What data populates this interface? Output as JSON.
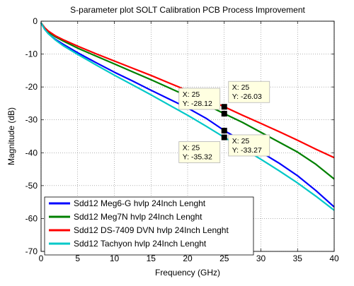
{
  "chart_data": {
    "type": "line",
    "title": "S-parameter plot SOLT Calibration PCB Process Improvement",
    "xlabel": "Frequency (GHz)",
    "ylabel": "Magnitude (dB)",
    "xlim": [
      0,
      40
    ],
    "ylim": [
      -70,
      0
    ],
    "xticks": [
      0,
      5,
      10,
      15,
      20,
      25,
      30,
      35,
      40
    ],
    "yticks": [
      0,
      -10,
      -20,
      -30,
      -40,
      -50,
      -60,
      -70
    ],
    "grid": true,
    "legend_position": "bottom-left",
    "series": [
      {
        "name": "Sdd12 Meg6-G hvlp 24Inch Lenght",
        "color": "#0000ff",
        "x": [
          0,
          0.5,
          1,
          2,
          3,
          5,
          7.5,
          10,
          12.5,
          15,
          17.5,
          20,
          22.5,
          25,
          27.5,
          30,
          32.5,
          35,
          37.5,
          40
        ],
        "y": [
          -0.5,
          -2.5,
          -3.8,
          -5.6,
          -7.0,
          -9.6,
          -12.6,
          -15.5,
          -18.2,
          -21.0,
          -23.7,
          -26.4,
          -29.5,
          -33.27,
          -36.5,
          -39.8,
          -43.2,
          -47.0,
          -51.5,
          -56.5
        ]
      },
      {
        "name": "Sdd12 Meg7N hvlp 24Inch Lenght",
        "color": "#008000",
        "x": [
          0,
          0.5,
          1,
          2,
          3,
          5,
          7.5,
          10,
          12.5,
          15,
          17.5,
          20,
          22.5,
          25,
          27.5,
          30,
          32.5,
          35,
          37.5,
          40
        ],
        "y": [
          -0.5,
          -2.2,
          -3.3,
          -4.8,
          -6.0,
          -8.2,
          -10.6,
          -13.0,
          -15.4,
          -17.8,
          -20.3,
          -22.8,
          -25.4,
          -28.12,
          -30.8,
          -33.8,
          -36.8,
          -39.8,
          -43.5,
          -48.0
        ]
      },
      {
        "name": "Sdd12 DS-7409 DVN hvlp 24Inch Lenght",
        "color": "#ff0000",
        "x": [
          0,
          0.5,
          1,
          2,
          3,
          5,
          7.5,
          10,
          12.5,
          15,
          17.5,
          20,
          22.5,
          25,
          27.5,
          30,
          32.5,
          35,
          37.5,
          40
        ],
        "y": [
          -0.5,
          -2.0,
          -3.0,
          -4.5,
          -5.6,
          -7.6,
          -9.9,
          -12.1,
          -14.3,
          -16.5,
          -18.8,
          -21.1,
          -23.5,
          -26.03,
          -28.6,
          -31.1,
          -33.6,
          -36.2,
          -38.9,
          -41.5
        ]
      },
      {
        "name": "Sdd12 Tachyon hvlp 24Inch Lenght",
        "color": "#00c8c8",
        "x": [
          0,
          0.5,
          1,
          2,
          3,
          5,
          7.5,
          10,
          12.5,
          15,
          17.5,
          20,
          22.5,
          25,
          27.5,
          30,
          32.5,
          35,
          37.5,
          40
        ],
        "y": [
          -0.5,
          -2.5,
          -3.8,
          -5.8,
          -7.4,
          -10.1,
          -13.3,
          -16.4,
          -19.4,
          -22.4,
          -25.5,
          -28.6,
          -31.9,
          -35.32,
          -38.6,
          -42.0,
          -45.5,
          -49.2,
          -53.2,
          -57.5
        ]
      }
    ],
    "datatips": [
      {
        "x": 25,
        "y": -26.03,
        "x_text": "X: 25",
        "y_text": "Y: -26.03",
        "placement": "right-above"
      },
      {
        "x": 25,
        "y": -28.12,
        "x_text": "X: 25",
        "y_text": "Y: -28.12",
        "placement": "left-above"
      },
      {
        "x": 25,
        "y": -33.27,
        "x_text": "X: 25",
        "y_text": "Y: -33.27",
        "placement": "right-below"
      },
      {
        "x": 25,
        "y": -35.32,
        "x_text": "X: 25",
        "y_text": "Y: -35.32",
        "placement": "left-below"
      }
    ]
  }
}
